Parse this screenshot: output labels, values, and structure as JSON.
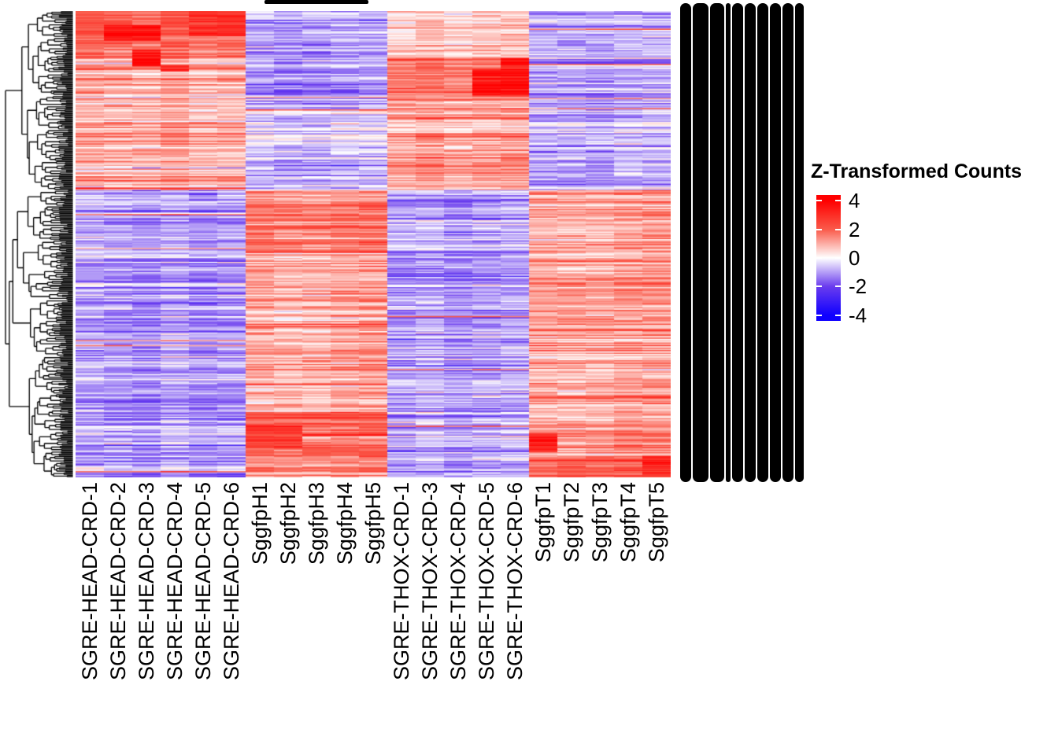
{
  "figure": {
    "background": "#ffffff"
  },
  "legend": {
    "title": "Z-Transformed Counts",
    "ticks": [
      4,
      2,
      0,
      -2,
      -4
    ],
    "zlim_display": [
      4.4,
      -4.4
    ],
    "high_color": "#ff0000",
    "mid_color": "#ffffff",
    "low_color": "#0000ff"
  },
  "row_label_strip": {
    "legible": false,
    "description_of_pixels": "hundreds of overlapping row labels rendered as solid black vertical glyph columns",
    "glyph_columns": 10
  },
  "dendrogram": {
    "side": "left",
    "leaf_count_estimate": 370
  },
  "chart_data": {
    "type": "heatmap",
    "title": "",
    "colorbar_title": "Z-Transformed Counts",
    "row_count": 370,
    "rows_labels_legible": false,
    "columns": [
      "SGRE-HEAD-CRD-1",
      "SGRE-HEAD-CRD-2",
      "SGRE-HEAD-CRD-3",
      "SGRE-HEAD-CRD-4",
      "SGRE-HEAD-CRD-5",
      "SGRE-HEAD-CRD-6",
      "SggfpH1",
      "SggfpH2",
      "SggfpH3",
      "SggfpH4",
      "SggfpH5",
      "SGRE-THOX-CRD-1",
      "SGRE-THOX-CRD-3",
      "SGRE-THOX-CRD-4",
      "SGRE-THOX-CRD-5",
      "SGRE-THOX-CRD-6",
      "SggfpT1",
      "SggfpT2",
      "SggfpT3",
      "SggfpT4",
      "SggfpT5"
    ],
    "column_groups": [
      {
        "name": "SGRE-HEAD-CRD",
        "start": 0,
        "count": 6
      },
      {
        "name": "SggfpH",
        "start": 6,
        "count": 5
      },
      {
        "name": "SGRE-THOX-CRD",
        "start": 11,
        "count": 5
      },
      {
        "name": "SggfpT",
        "start": 16,
        "count": 5
      }
    ],
    "color_stops": [
      [
        -4,
        "#0f00ff"
      ],
      [
        -2,
        "#6a3cee"
      ],
      [
        0,
        "#ffffff"
      ],
      [
        2,
        "#fa5a4a"
      ],
      [
        4,
        "#ff0000"
      ]
    ],
    "row_blocks": [
      {
        "rows": [
          0.0,
          0.1
        ],
        "z": {
          "SGRE-HEAD-CRD": 1.9,
          "SggfpH": -0.95,
          "SGRE-THOX-CRD": 0.75,
          "SggfpT": -0.8
        }
      },
      {
        "rows": [
          0.1,
          0.155
        ],
        "z": {
          "SGRE-HEAD-CRD": 1.2,
          "SggfpH": -1.0,
          "SGRE-THOX-CRD": 1.6,
          "SggfpT": -0.9
        }
      },
      {
        "rows": [
          0.155,
          0.21
        ],
        "z": {
          "SGRE-HEAD-CRD": 1.0,
          "SggfpH": -0.9,
          "SGRE-THOX-CRD": 1.5,
          "SggfpT": -0.85
        }
      },
      {
        "rows": [
          0.21,
          0.3
        ],
        "z": {
          "SGRE-HEAD-CRD": 1.05,
          "SggfpH": -0.35,
          "SGRE-THOX-CRD": 1.0,
          "SggfpT": -0.7
        }
      },
      {
        "rows": [
          0.3,
          0.385
        ],
        "z": {
          "SGRE-HEAD-CRD": 0.9,
          "SggfpH": -0.75,
          "SGRE-THOX-CRD": 1.2,
          "SggfpT": -0.8
        }
      },
      {
        "rows": [
          0.385,
          0.55
        ],
        "z": {
          "SGRE-HEAD-CRD": -0.95,
          "SggfpH": 1.45,
          "SGRE-THOX-CRD": -1.0,
          "SggfpT": 1.05
        }
      },
      {
        "rows": [
          0.55,
          0.72
        ],
        "z": {
          "SGRE-HEAD-CRD": -1.0,
          "SggfpH": 1.1,
          "SGRE-THOX-CRD": -1.05,
          "SggfpT": 1.35
        }
      },
      {
        "rows": [
          0.72,
          0.86
        ],
        "z": {
          "SGRE-HEAD-CRD": -1.05,
          "SggfpH": 1.2,
          "SGRE-THOX-CRD": -1.0,
          "SggfpT": 1.1
        }
      },
      {
        "rows": [
          0.86,
          0.955
        ],
        "z": {
          "SGRE-HEAD-CRD": -0.95,
          "SggfpH": 1.9,
          "SGRE-THOX-CRD": -1.0,
          "SggfpT": 1.3
        }
      },
      {
        "rows": [
          0.955,
          1.0
        ],
        "z": {
          "SGRE-HEAD-CRD": -0.9,
          "SggfpH": 1.5,
          "SGRE-THOX-CRD": -0.9,
          "SggfpT": 1.9
        }
      }
    ],
    "hotspots": [
      {
        "group": "SGRE-HEAD-CRD",
        "cols": [
          1,
          2
        ],
        "rows": [
          0.03,
          0.065
        ],
        "z": 3.6
      },
      {
        "group": "SGRE-HEAD-CRD",
        "cols": [
          2,
          2
        ],
        "rows": [
          0.085,
          0.12
        ],
        "z": 3.8
      },
      {
        "group": "SGRE-HEAD-CRD",
        "cols": [
          4,
          5
        ],
        "rows": [
          0.0,
          0.055
        ],
        "z": 3.0
      },
      {
        "group": "SGRE-HEAD-CRD",
        "cols": [
          3,
          3
        ],
        "rows": [
          0.115,
          0.13
        ],
        "z": 3.3
      },
      {
        "group": "SGRE-THOX-CRD",
        "cols": [
          3,
          4
        ],
        "rows": [
          0.125,
          0.185
        ],
        "z": 3.7
      },
      {
        "group": "SGRE-THOX-CRD",
        "cols": [
          4,
          4
        ],
        "rows": [
          0.1,
          0.125
        ],
        "z": 3.2
      },
      {
        "group": "SggfpH",
        "cols": [
          0,
          1
        ],
        "rows": [
          0.885,
          0.935
        ],
        "z": 2.8
      },
      {
        "group": "SggfpT",
        "cols": [
          0,
          0
        ],
        "rows": [
          0.905,
          0.945
        ],
        "z": 3.5
      },
      {
        "group": "SggfpT",
        "cols": [
          4,
          4
        ],
        "rows": [
          0.955,
          0.995
        ],
        "z": 3.2
      }
    ],
    "layout": {
      "legend_position": "right",
      "row_dendrogram": "left",
      "grid": false
    }
  }
}
